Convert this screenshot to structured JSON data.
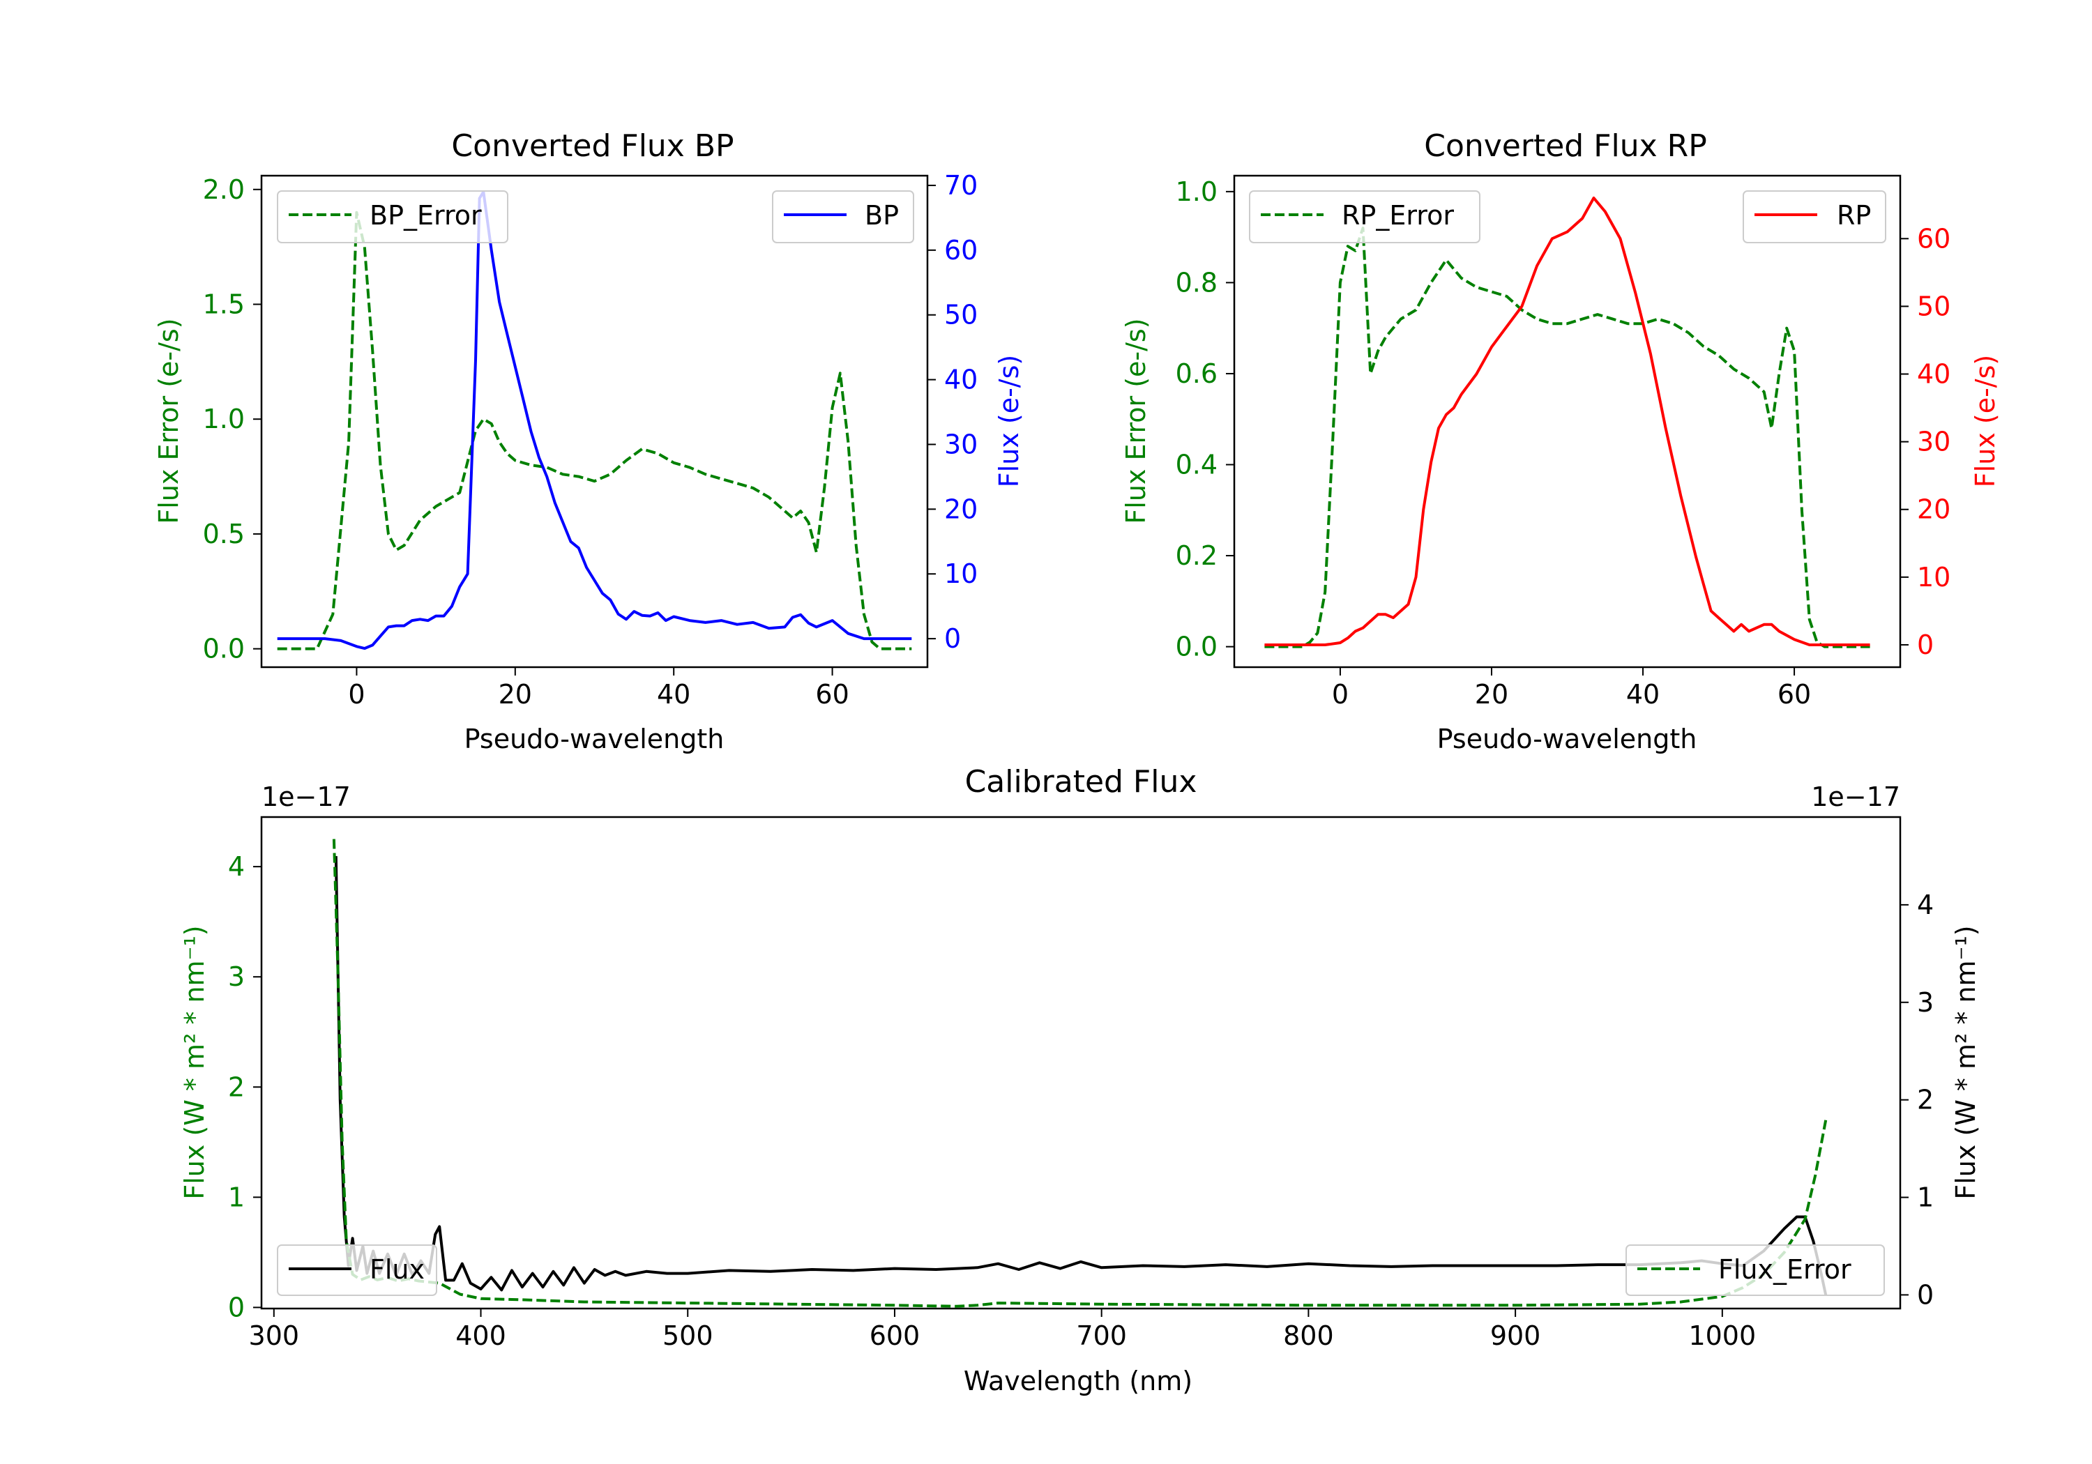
{
  "colors": {
    "green": "#008000",
    "blue": "#0000ff",
    "red": "#ff0000",
    "black": "#000000"
  },
  "chart_data": [
    {
      "type": "line",
      "title": "Converted Flux BP",
      "xlabel": "Pseudo-wavelength",
      "ylabel_left": "Flux Error (e-/s)",
      "ylabel_right": "Flux (e-/s)",
      "xlim": [
        -12,
        72
      ],
      "ylim_left": [
        -0.08,
        2.06
      ],
      "ylim_right": [
        -4.4,
        71.5
      ],
      "xticks": [
        0,
        20,
        40,
        60
      ],
      "xtick_labels": [
        "0",
        "20",
        "40",
        "60"
      ],
      "yticks_left": [
        0.0,
        0.5,
        1.0,
        1.5,
        2.0
      ],
      "ytick_labels_left": [
        "0.0",
        "0.5",
        "1.0",
        "1.5",
        "2.0"
      ],
      "yticks_right": [
        0,
        10,
        20,
        30,
        40,
        50,
        60,
        70
      ],
      "ytick_labels_right": [
        "0",
        "10",
        "20",
        "30",
        "40",
        "50",
        "60",
        "70"
      ],
      "series": [
        {
          "name": "BP_Error",
          "axis": "left",
          "color": "#008000",
          "dash": true,
          "legend": "top-left",
          "x": [
            -10,
            -5,
            -3,
            -1,
            0,
            1,
            2,
            3,
            4,
            5,
            6,
            8,
            10,
            13,
            15,
            16,
            17,
            18,
            19,
            20,
            22,
            24,
            26,
            28,
            30,
            32,
            34,
            36,
            38,
            40,
            42,
            44,
            46,
            48,
            50,
            52,
            54,
            55,
            56,
            57,
            58,
            59,
            60,
            61,
            62,
            63,
            64,
            65,
            66,
            70
          ],
          "values": [
            0,
            0,
            0.15,
            0.9,
            1.9,
            1.75,
            1.3,
            0.8,
            0.5,
            0.43,
            0.45,
            0.56,
            0.62,
            0.68,
            0.95,
            1.0,
            0.98,
            0.9,
            0.85,
            0.82,
            0.8,
            0.79,
            0.76,
            0.75,
            0.73,
            0.76,
            0.82,
            0.87,
            0.85,
            0.81,
            0.79,
            0.76,
            0.74,
            0.72,
            0.7,
            0.66,
            0.6,
            0.57,
            0.6,
            0.55,
            0.42,
            0.7,
            1.05,
            1.2,
            0.9,
            0.45,
            0.15,
            0.03,
            0,
            0
          ]
        },
        {
          "name": "BP",
          "axis": "right",
          "color": "#0000ff",
          "dash": false,
          "legend": "top-right",
          "x": [
            -10,
            -4,
            -2,
            0,
            1,
            2,
            3,
            4,
            5,
            6,
            7,
            8,
            9,
            10,
            11,
            12,
            13,
            14,
            15,
            15.5,
            16,
            17,
            18,
            19,
            20,
            21,
            22,
            23,
            24,
            25,
            26,
            27,
            28,
            29,
            30,
            31,
            32,
            33,
            34,
            35,
            36,
            37,
            38,
            39,
            40,
            42,
            44,
            46,
            48,
            50,
            52,
            54,
            55,
            56,
            57,
            58,
            60,
            62,
            64,
            66,
            70
          ],
          "values": [
            0,
            0,
            -0.3,
            -1.2,
            -1.5,
            -1,
            0.4,
            1.8,
            2,
            2,
            2.8,
            3,
            2.8,
            3.5,
            3.5,
            5,
            8,
            10,
            43,
            68,
            69,
            60,
            52,
            47,
            42,
            37,
            32,
            28,
            25,
            21,
            18,
            15,
            14,
            11,
            9,
            7,
            6,
            3.8,
            3,
            4.2,
            3.6,
            3.5,
            4,
            2.8,
            3.4,
            2.8,
            2.5,
            2.8,
            2.2,
            2.5,
            1.6,
            1.8,
            3.3,
            3.7,
            2.4,
            1.8,
            2.8,
            0.8,
            0,
            0,
            0
          ]
        }
      ]
    },
    {
      "type": "line",
      "title": "Converted Flux RP",
      "xlabel": "Pseudo-wavelength",
      "ylabel_left": "Flux Error (e-/s)",
      "ylabel_right": "Flux (e-/s)",
      "xlim": [
        -14,
        74
      ],
      "ylim_left": [
        -0.045,
        1.035
      ],
      "ylim_right": [
        -3.3,
        69.3
      ],
      "xticks": [
        0,
        20,
        40,
        60
      ],
      "xtick_labels": [
        "0",
        "20",
        "40",
        "60"
      ],
      "yticks_left": [
        0.0,
        0.2,
        0.4,
        0.6,
        0.8,
        1.0
      ],
      "ytick_labels_left": [
        "0.0",
        "0.2",
        "0.4",
        "0.6",
        "0.8",
        "1.0"
      ],
      "yticks_right": [
        0,
        10,
        20,
        30,
        40,
        50,
        60
      ],
      "ytick_labels_right": [
        "0",
        "10",
        "20",
        "30",
        "40",
        "50",
        "60"
      ],
      "series": [
        {
          "name": "RP_Error",
          "axis": "left",
          "color": "#008000",
          "dash": true,
          "legend": "top-left",
          "x": [
            -10,
            -5,
            -4,
            -3,
            -2,
            -1,
            0,
            1,
            2,
            3,
            4,
            5,
            6,
            8,
            10,
            12,
            14,
            16,
            18,
            20,
            22,
            24,
            26,
            28,
            30,
            32,
            34,
            36,
            38,
            40,
            42,
            44,
            46,
            48,
            50,
            52,
            54,
            56,
            57,
            58,
            59,
            60,
            61,
            62,
            63,
            64,
            65,
            70
          ],
          "values": [
            0,
            0,
            0.01,
            0.03,
            0.12,
            0.45,
            0.8,
            0.88,
            0.87,
            0.92,
            0.6,
            0.65,
            0.68,
            0.72,
            0.74,
            0.8,
            0.85,
            0.81,
            0.79,
            0.78,
            0.77,
            0.74,
            0.72,
            0.71,
            0.71,
            0.72,
            0.73,
            0.72,
            0.71,
            0.71,
            0.72,
            0.71,
            0.69,
            0.66,
            0.64,
            0.61,
            0.59,
            0.56,
            0.48,
            0.6,
            0.7,
            0.65,
            0.3,
            0.06,
            0.01,
            0,
            0,
            0
          ]
        },
        {
          "name": "RP",
          "axis": "right",
          "color": "#ff0000",
          "dash": false,
          "legend": "top-right",
          "x": [
            -10,
            -2,
            0,
            1,
            2,
            3,
            4,
            5,
            6,
            7,
            8,
            9,
            10,
            11,
            12,
            13,
            14,
            15,
            16,
            18,
            20,
            22,
            24,
            26,
            28,
            30,
            32,
            33.5,
            35,
            37,
            39,
            41,
            43,
            45,
            47,
            48,
            49,
            50,
            51,
            52,
            53,
            54,
            56,
            57,
            58,
            60,
            62,
            70
          ],
          "values": [
            0,
            0,
            0.3,
            1,
            2,
            2.5,
            3.5,
            4.5,
            4.5,
            4,
            5,
            6,
            10,
            20,
            27,
            32,
            34,
            35,
            37,
            40,
            44,
            47,
            50,
            56,
            60,
            61,
            63,
            66,
            64,
            60,
            52,
            43,
            32,
            22,
            13,
            9,
            5,
            4,
            3,
            2,
            3,
            2,
            3,
            3,
            2,
            0.8,
            0,
            0
          ]
        }
      ]
    },
    {
      "type": "line",
      "title": "Calibrated Flux",
      "xlabel": "Wavelength (nm)",
      "ylabel_left": "Flux (W * m² * nm⁻¹)",
      "ylabel_right": "Flux (W * m² * nm⁻¹)",
      "offset_left": "1e−17",
      "offset_right": "1e−17",
      "xlim": [
        294,
        1086
      ],
      "ylim_left": [
        -0.01,
        4.45
      ],
      "ylim_right": [
        -0.14,
        4.9
      ],
      "xticks": [
        300,
        400,
        500,
        600,
        700,
        800,
        900,
        1000
      ],
      "xtick_labels": [
        "300",
        "400",
        "500",
        "600",
        "700",
        "800",
        "900",
        "1000"
      ],
      "yticks_left": [
        0,
        1,
        2,
        3,
        4
      ],
      "ytick_labels_left": [
        "0",
        "1",
        "2",
        "3",
        "4"
      ],
      "yticks_right": [
        0,
        1,
        2,
        3,
        4
      ],
      "ytick_labels_right": [
        "0",
        "1",
        "2",
        "3",
        "4"
      ],
      "series": [
        {
          "name": "Flux",
          "axis": "right",
          "color": "#000000",
          "dash": false,
          "legend": "bottom-left",
          "x": [
            330,
            332,
            334,
            336,
            338,
            340,
            343,
            345,
            348,
            351,
            355,
            359,
            363,
            367,
            371,
            375,
            378,
            380,
            383,
            387,
            391,
            395,
            400,
            405,
            410,
            415,
            420,
            425,
            430,
            435,
            440,
            445,
            450,
            455,
            460,
            465,
            470,
            480,
            490,
            500,
            520,
            540,
            560,
            580,
            600,
            620,
            640,
            650,
            660,
            670,
            680,
            690,
            700,
            720,
            740,
            760,
            780,
            800,
            820,
            840,
            860,
            880,
            900,
            920,
            940,
            960,
            980,
            990,
            1000,
            1010,
            1020,
            1030,
            1036,
            1040,
            1044,
            1048,
            1050
          ],
          "values": [
            4.5,
            2,
            0.8,
            0.3,
            0.58,
            0.25,
            0.5,
            0.22,
            0.45,
            0.22,
            0.42,
            0.2,
            0.42,
            0.2,
            0.35,
            0.22,
            0.62,
            0.7,
            0.15,
            0.15,
            0.32,
            0.12,
            0.06,
            0.18,
            0.05,
            0.25,
            0.08,
            0.22,
            0.08,
            0.24,
            0.1,
            0.28,
            0.12,
            0.26,
            0.2,
            0.24,
            0.2,
            0.24,
            0.22,
            0.22,
            0.25,
            0.24,
            0.26,
            0.25,
            0.27,
            0.26,
            0.28,
            0.32,
            0.26,
            0.33,
            0.27,
            0.34,
            0.28,
            0.3,
            0.29,
            0.31,
            0.29,
            0.32,
            0.3,
            0.29,
            0.3,
            0.3,
            0.3,
            0.3,
            0.31,
            0.31,
            0.33,
            0.35,
            0.32,
            0.3,
            0.45,
            0.68,
            0.8,
            0.8,
            0.55,
            0.2,
            0
          ]
        },
        {
          "name": "Flux_Error",
          "axis": "left",
          "color": "#008000",
          "dash": true,
          "legend": "bottom-right",
          "x": [
            329,
            331,
            333,
            335,
            338,
            342,
            346,
            350,
            355,
            360,
            365,
            370,
            380,
            390,
            400,
            420,
            450,
            500,
            550,
            600,
            630,
            640,
            650,
            700,
            800,
            900,
            960,
            980,
            1000,
            1010,
            1020,
            1030,
            1040,
            1045,
            1050
          ],
          "values": [
            4.25,
            3.0,
            1.5,
            0.6,
            0.3,
            0.25,
            0.28,
            0.25,
            0.27,
            0.24,
            0.26,
            0.24,
            0.22,
            0.12,
            0.08,
            0.07,
            0.05,
            0.04,
            0.03,
            0.02,
            0.01,
            0.02,
            0.04,
            0.03,
            0.02,
            0.02,
            0.03,
            0.05,
            0.1,
            0.18,
            0.3,
            0.5,
            0.8,
            1.2,
            1.7
          ]
        }
      ]
    }
  ]
}
